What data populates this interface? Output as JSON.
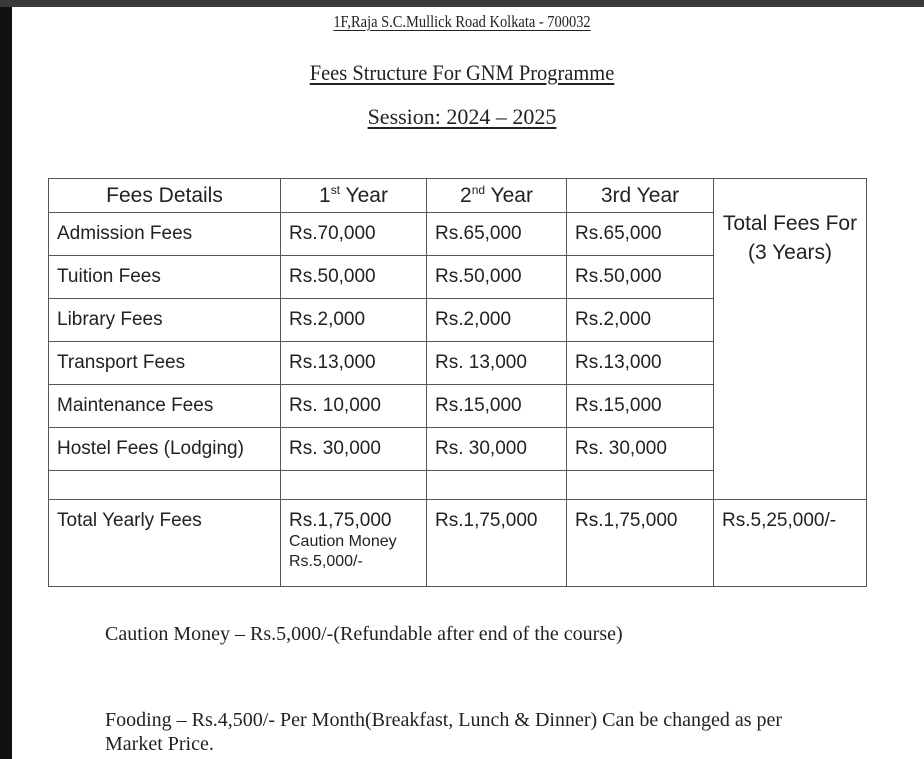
{
  "header": {
    "address": "1F,Raja S.C.Mullick Road Kolkata - 700032",
    "title": "Fees Structure For GNM Programme",
    "session": "Session: 2024 – 2025"
  },
  "table": {
    "columns": [
      {
        "label": "Fees Details"
      },
      {
        "num": "1",
        "sup": "st",
        "label": " Year"
      },
      {
        "num": "2",
        "sup": "nd",
        "label": " Year"
      },
      {
        "label": "3rd Year"
      }
    ],
    "total_header": "Total Fees For (3 Years)",
    "rows": [
      {
        "label": "Admission Fees",
        "y1": "Rs.70,000",
        "y2": "Rs.65,000",
        "y3": "Rs.65,000"
      },
      {
        "label": "Tuition Fees",
        "y1": "Rs.50,000",
        "y2": "Rs.50,000",
        "y3": "Rs.50,000"
      },
      {
        "label": "Library Fees",
        "y1": "Rs.2,000",
        "y2": "Rs.2,000",
        "y3": "Rs.2,000"
      },
      {
        "label": "Transport Fees",
        "y1": "Rs.13,000",
        "y2": "Rs. 13,000",
        "y3": "Rs.13,000"
      },
      {
        "label": "Maintenance Fees",
        "y1": "Rs. 10,000",
        "y2": "Rs.15,000",
        "y3": "Rs.15,000"
      },
      {
        "label": "Hostel Fees (Lodging)",
        "y1": "Rs. 30,000",
        "y2": "Rs. 30,000",
        "y3": "Rs. 30,000"
      }
    ],
    "total_row": {
      "label": "Total Yearly Fees",
      "y1": "Rs.1,75,000",
      "y1_note1": "Caution Money",
      "y1_note2": "Rs.5,000/-",
      "y2": "Rs.1,75,000",
      "y3": "Rs.1,75,000",
      "total": "Rs.5,25,000/-"
    }
  },
  "notes": {
    "caution": "Caution Money – Rs.5,000/-(Refundable after end of the course)",
    "fooding": "Fooding – Rs.4,500/- Per Month(Breakfast, Lunch & Dinner) Can be changed as per Market Price."
  }
}
